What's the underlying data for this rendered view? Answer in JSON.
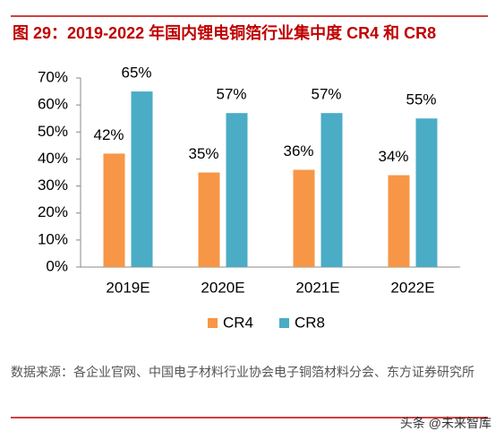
{
  "chart_data": {
    "type": "bar",
    "title": "图 29：2019-2022 年国内锂电铜箔行业集中度 CR4 和 CR8",
    "categories": [
      "2019E",
      "2020E",
      "2021E",
      "2022E"
    ],
    "series": [
      {
        "name": "CR4",
        "color": "#f79646",
        "values": [
          42,
          35,
          36,
          34
        ],
        "value_labels": [
          "42%",
          "35%",
          "36%",
          "34%"
        ]
      },
      {
        "name": "CR8",
        "color": "#4bacc6",
        "values": [
          65,
          57,
          57,
          55
        ],
        "value_labels": [
          "65%",
          "57%",
          "57%",
          "55%"
        ]
      }
    ],
    "ylim": [
      0,
      70
    ],
    "yticks": [
      {
        "value": 0,
        "label": "0%"
      },
      {
        "value": 10,
        "label": "10%"
      },
      {
        "value": 20,
        "label": "20%"
      },
      {
        "value": 30,
        "label": "30%"
      },
      {
        "value": 40,
        "label": "40%"
      },
      {
        "value": 50,
        "label": "50%"
      },
      {
        "value": 60,
        "label": "60%"
      },
      {
        "value": 70,
        "label": "70%"
      }
    ],
    "grid": false,
    "legend": "bottom"
  },
  "footer": {
    "source": "数据来源：各企业官网、中国电子材料行业协会电子铜箔材料分会、东方证券研究所",
    "watermark": "头条 @未来智库"
  }
}
